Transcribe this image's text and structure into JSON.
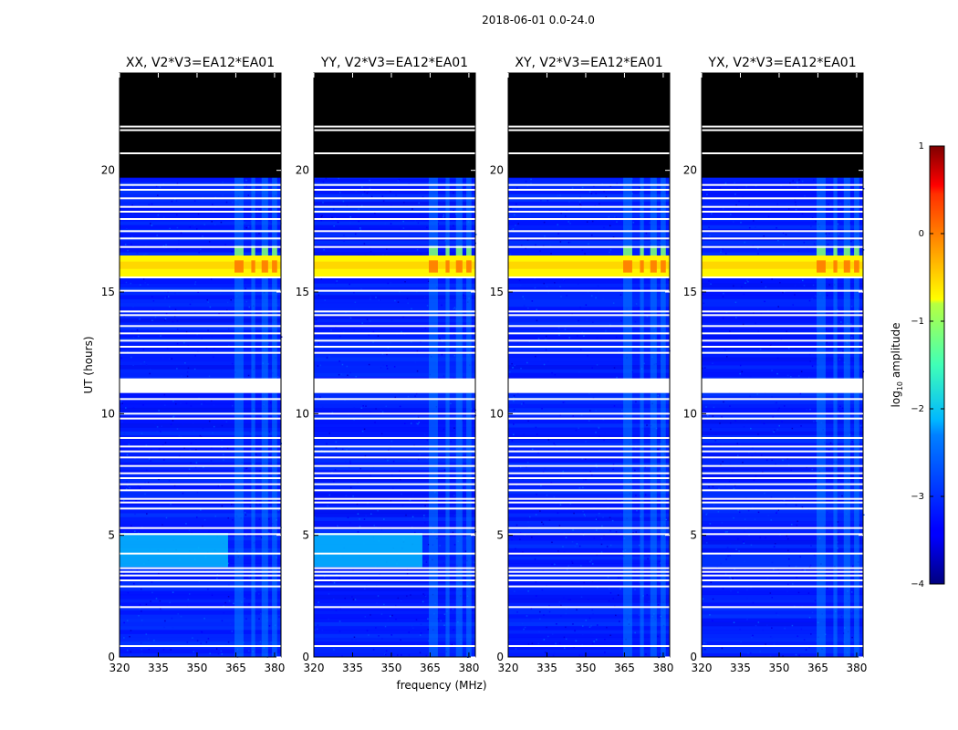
{
  "figure": {
    "suptitle": "2018-06-01 0.0-24.0"
  },
  "chart_data": {
    "type": "heatmap",
    "shared": {
      "xlabel": "frequency (MHz)",
      "ylabel": "UT (hours)",
      "xlim": [
        320,
        382.5
      ],
      "ylim": [
        0,
        24
      ],
      "x_ticks": [
        320,
        335,
        350,
        365,
        380
      ],
      "y_ticks": [
        0,
        5,
        10,
        15,
        20
      ],
      "blanked_hours": [
        [
          19.7,
          24.0
        ]
      ],
      "flagged_hours": [
        0.45,
        2.05,
        2.9,
        3.15,
        3.35,
        3.5,
        3.65,
        4.25,
        5.05,
        5.3,
        6.1,
        6.35,
        6.5,
        6.85,
        7.1,
        7.35,
        7.55,
        7.85,
        8.2,
        8.45,
        8.65,
        9.0,
        9.8,
        10.0,
        10.6,
        12.5,
        12.75,
        13.0,
        13.3,
        13.6,
        14.05,
        14.2,
        15.05,
        15.6,
        16.85,
        17.2,
        17.5,
        18.0,
        18.3,
        18.5,
        18.85,
        19.2,
        19.4,
        20.7,
        21.65,
        21.8
      ],
      "flagged_ranges": [
        [
          10.85,
          11.45
        ]
      ],
      "rfi_bands_mhz": [
        [
          364.5,
          368.0
        ],
        [
          371.0,
          372.5
        ],
        [
          375.0,
          377.5
        ],
        [
          379.0,
          381.0
        ]
      ],
      "bright_interval_hours": [
        15.6,
        16.5
      ],
      "elevated_interval_hours": [
        3.7,
        5.1
      ],
      "background_log_amplitude": -3.0,
      "bright_log_amplitude": -0.7,
      "elevated_log_amplitude": -2.1
    },
    "panels": [
      {
        "title": "XX, V2*V3=EA12*EA01",
        "elevated_low_band": true
      },
      {
        "title": "YY, V2*V3=EA12*EA01",
        "elevated_low_band": true
      },
      {
        "title": "XY, V2*V3=EA12*EA01",
        "elevated_low_band": false
      },
      {
        "title": "YX, V2*V3=EA12*EA01",
        "elevated_low_band": false
      }
    ],
    "colorbar": {
      "label": "log10 amplitude",
      "label_main": "log",
      "label_sub": "10",
      "label_rest": " amplitude",
      "min": -4,
      "max": 1,
      "ticks": [
        {
          "value": 1,
          "label": "1"
        },
        {
          "value": 0,
          "label": "0"
        },
        {
          "value": -1,
          "label": "−1"
        },
        {
          "value": -2,
          "label": "−2"
        },
        {
          "value": -3,
          "label": "−3"
        },
        {
          "value": -4,
          "label": "−4"
        }
      ],
      "colormap": "jet"
    }
  }
}
